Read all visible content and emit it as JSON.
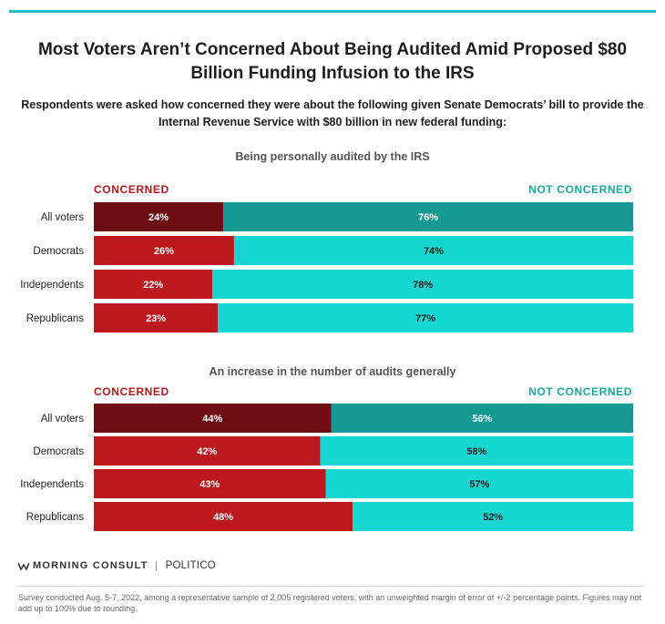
{
  "title": "Most Voters Aren’t Concerned About Being Audited Amid Proposed $80 Billion Funding Infusion to the IRS",
  "subtitle": "Respondents were asked how concerned they were about the following given Senate Democrats’ bill to provide the Internal Revenue Service with $80 billion in new federal funding:",
  "legend": {
    "concerned": "CONCERNED",
    "not_concerned": "NOT CONCERNED"
  },
  "colors": {
    "concerned_all": "#6e0d12",
    "concerned": "#bd181d",
    "not_concerned_all": "#169994",
    "not_concerned": "#15d6d0",
    "accent": "#1bbfbf"
  },
  "chart_data": [
    {
      "type": "bar",
      "orientation": "horizontal",
      "stacked": true,
      "title": "Being personally audited by the IRS",
      "categories": [
        "All voters",
        "Democrats",
        "Independents",
        "Republicans"
      ],
      "series": [
        {
          "name": "CONCERNED",
          "values": [
            24,
            26,
            22,
            23
          ]
        },
        {
          "name": "NOT CONCERNED",
          "values": [
            76,
            74,
            78,
            77
          ]
        }
      ],
      "value_suffix": "%",
      "xlim": [
        0,
        100
      ]
    },
    {
      "type": "bar",
      "orientation": "horizontal",
      "stacked": true,
      "title": "An increase in the number of audits generally",
      "categories": [
        "All voters",
        "Democrats",
        "Independents",
        "Republicans"
      ],
      "series": [
        {
          "name": "CONCERNED",
          "values": [
            44,
            42,
            43,
            48
          ]
        },
        {
          "name": "NOT CONCERNED",
          "values": [
            56,
            58,
            57,
            52
          ]
        }
      ],
      "value_suffix": "%",
      "xlim": [
        0,
        100
      ]
    }
  ],
  "footer": {
    "brand": "MORNING CONSULT",
    "partner": "POLITICO",
    "note": "Survey conducted Aug. 5-7, 2022, among a representative sample of 2,005 registered voters, with an unweighted margin of error of +/-2 percentage points. Figures may not add up to 100% due to rounding."
  }
}
